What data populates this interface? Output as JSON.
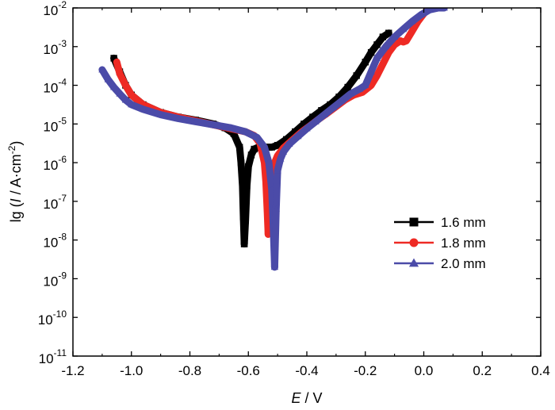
{
  "chart_data": {
    "type": "line",
    "title": "",
    "xlabel": {
      "italic": "E",
      "rest": " / V"
    },
    "ylabel": {
      "prefix": "lg (",
      "italic": "I",
      "middle": " / A·cm",
      "sup": "-2",
      "suffix": ")"
    },
    "xlim": [
      -1.2,
      0.4
    ],
    "ylim": [
      -11,
      -2
    ],
    "y_scale": "log10 exponent",
    "x_ticks": [
      "-1.2",
      "-1.0",
      "-0.8",
      "-0.6",
      "-0.4",
      "-0.2",
      "0.0",
      "0.2",
      "0.4"
    ],
    "x_tick_values": [
      -1.2,
      -1.0,
      -0.8,
      -0.6,
      -0.4,
      -0.2,
      0.0,
      0.2,
      0.4
    ],
    "y_tick_exponents": [
      -2,
      -3,
      -4,
      -5,
      -6,
      -7,
      -8,
      -9,
      -10,
      -11
    ],
    "y_tick_base": "10",
    "legend_position": "right-middle",
    "grid": false,
    "series": [
      {
        "name": "1.6 mm",
        "color": "#000000",
        "marker": "square",
        "branches": [
          {
            "x": [
              -1.06,
              -1.04,
              -1.02,
              -1.0,
              -0.96,
              -0.9,
              -0.84,
              -0.78,
              -0.72,
              -0.68,
              -0.65,
              -0.63,
              -0.625,
              -0.62,
              -0.617,
              -0.614
            ],
            "y": [
              -3.3,
              -3.65,
              -4.0,
              -4.25,
              -4.5,
              -4.7,
              -4.82,
              -4.9,
              -5.0,
              -5.1,
              -5.25,
              -5.6,
              -6.0,
              -6.6,
              -7.4,
              -8.1
            ]
          },
          {
            "x": [
              -0.614,
              -0.61,
              -0.605,
              -0.6,
              -0.59,
              -0.58,
              -0.56,
              -0.54,
              -0.52,
              -0.5,
              -0.47,
              -0.44,
              -0.41,
              -0.38,
              -0.35,
              -0.32,
              -0.29,
              -0.26,
              -0.23,
              -0.2,
              -0.18,
              -0.16,
              -0.14,
              -0.12
            ],
            "y": [
              -8.1,
              -7.5,
              -6.6,
              -6.1,
              -5.8,
              -5.65,
              -5.58,
              -5.6,
              -5.6,
              -5.55,
              -5.4,
              -5.2,
              -5.0,
              -4.82,
              -4.65,
              -4.5,
              -4.3,
              -4.05,
              -3.75,
              -3.4,
              -3.15,
              -2.95,
              -2.75,
              -2.65
            ]
          }
        ]
      },
      {
        "name": "1.8 mm",
        "color": "#ee2a24",
        "marker": "circle",
        "branches": [
          {
            "x": [
              -1.05,
              -1.04,
              -1.02,
              -1.0,
              -0.96,
              -0.9,
              -0.84,
              -0.78,
              -0.72,
              -0.66,
              -0.61,
              -0.58,
              -0.56,
              -0.545,
              -0.54,
              -0.535,
              -0.532
            ],
            "y": [
              -3.4,
              -3.7,
              -4.0,
              -4.25,
              -4.5,
              -4.7,
              -4.82,
              -4.92,
              -5.02,
              -5.12,
              -5.2,
              -5.3,
              -5.5,
              -6.0,
              -6.5,
              -7.3,
              -7.85
            ]
          },
          {
            "x": [
              -0.532,
              -0.53,
              -0.525,
              -0.52,
              -0.51,
              -0.5,
              -0.48,
              -0.45,
              -0.42,
              -0.39,
              -0.36,
              -0.33,
              -0.3,
              -0.27,
              -0.24,
              -0.21,
              -0.18,
              -0.16,
              -0.14,
              -0.12,
              -0.1,
              -0.08,
              -0.07,
              -0.06,
              -0.04,
              -0.02,
              0.0,
              0.02
            ],
            "y": [
              -7.85,
              -7.3,
              -6.8,
              -6.3,
              -6.0,
              -5.82,
              -5.62,
              -5.42,
              -5.22,
              -5.05,
              -4.88,
              -4.72,
              -4.55,
              -4.38,
              -4.25,
              -4.18,
              -4.0,
              -3.75,
              -3.45,
              -3.15,
              -2.95,
              -2.85,
              -2.88,
              -2.85,
              -2.6,
              -2.35,
              -2.15,
              -2.0
            ]
          }
        ]
      },
      {
        "name": "2.0 mm",
        "color": "#4b4ba8",
        "marker": "triangle",
        "branches": [
          {
            "x": [
              -1.1,
              -1.08,
              -1.06,
              -1.04,
              -1.02,
              -1.0,
              -0.96,
              -0.9,
              -0.84,
              -0.78,
              -0.72,
              -0.66,
              -0.61,
              -0.57,
              -0.545,
              -0.53,
              -0.52,
              -0.515,
              -0.51
            ],
            "y": [
              -3.6,
              -3.85,
              -4.05,
              -4.22,
              -4.38,
              -4.5,
              -4.62,
              -4.76,
              -4.86,
              -4.94,
              -5.02,
              -5.1,
              -5.2,
              -5.35,
              -5.6,
              -6.0,
              -6.7,
              -7.6,
              -8.7
            ]
          },
          {
            "x": [
              -0.51,
              -0.505,
              -0.5,
              -0.49,
              -0.48,
              -0.46,
              -0.43,
              -0.4,
              -0.37,
              -0.34,
              -0.31,
              -0.28,
              -0.25,
              -0.22,
              -0.2,
              -0.18,
              -0.16,
              -0.13,
              -0.1,
              -0.07,
              -0.04,
              -0.01,
              0.02,
              0.05,
              0.07
            ],
            "y": [
              -8.7,
              -7.2,
              -6.2,
              -5.9,
              -5.72,
              -5.52,
              -5.32,
              -5.12,
              -4.94,
              -4.76,
              -4.58,
              -4.4,
              -4.22,
              -4.1,
              -4.0,
              -3.65,
              -3.3,
              -3.0,
              -2.75,
              -2.55,
              -2.35,
              -2.18,
              -2.05,
              -2.0,
              -2.0
            ]
          }
        ]
      }
    ]
  }
}
